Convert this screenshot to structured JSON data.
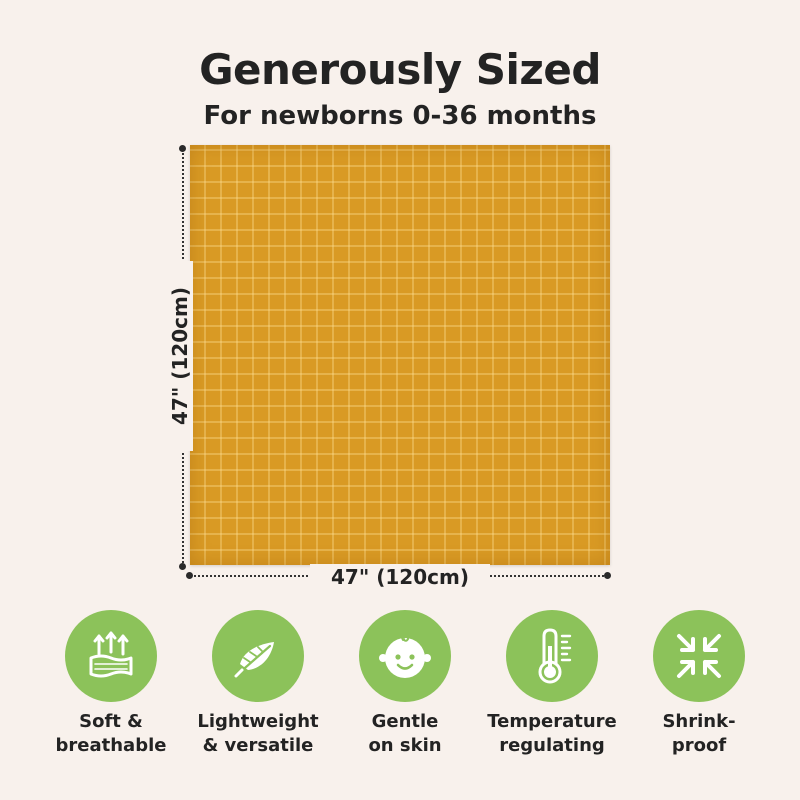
{
  "header": {
    "title": "Generously Sized",
    "subtitle": "For newborns 0-36 months"
  },
  "product": {
    "color": "#d99a24",
    "width_label": "47\" (120cm)",
    "height_label": "47\" (120cm)"
  },
  "features": [
    {
      "icon": "breathable-fabric-icon",
      "label": "Soft &\nbreathable"
    },
    {
      "icon": "feather-icon",
      "label": "Lightweight\n& versatile"
    },
    {
      "icon": "baby-face-icon",
      "label": "Gentle\non skin"
    },
    {
      "icon": "thermometer-icon",
      "label": "Temperature\nregulating"
    },
    {
      "icon": "shrink-arrows-icon",
      "label": "Shrink-\nproof"
    }
  ],
  "colors": {
    "background": "#f8f1ec",
    "icon_circle": "#8cc25a",
    "text": "#232323"
  }
}
